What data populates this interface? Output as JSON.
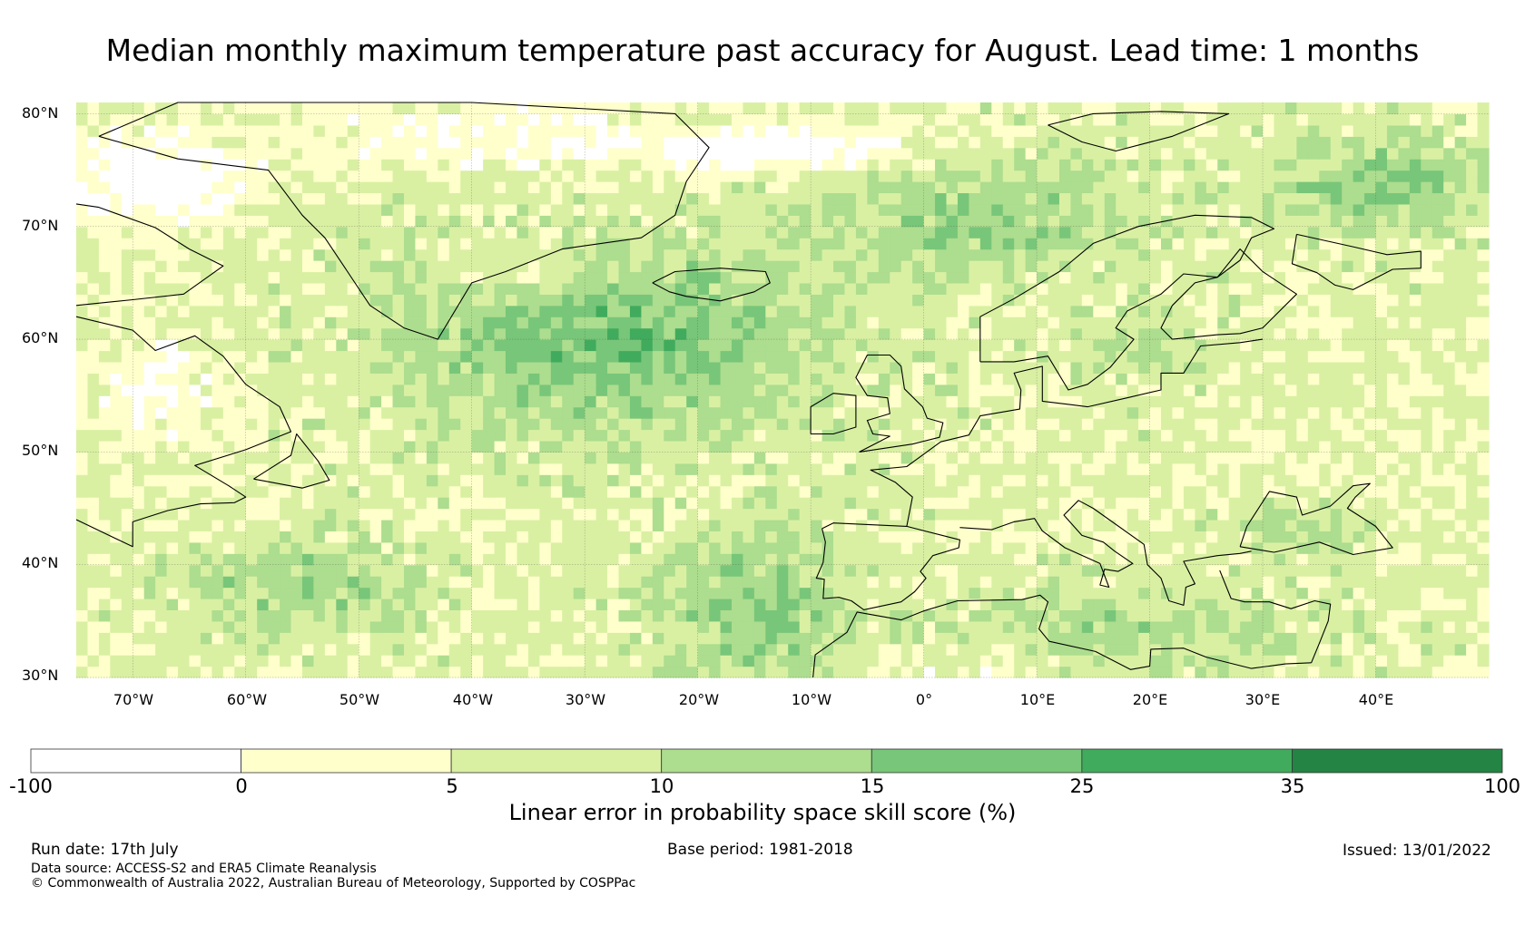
{
  "title": "Median monthly maximum temperature past accuracy for August. Lead time: 1 months",
  "map": {
    "lat_labels": [
      "80°N",
      "70°N",
      "60°N",
      "50°N",
      "40°N",
      "30°N"
    ],
    "lon_labels": [
      "70°W",
      "60°W",
      "50°W",
      "40°W",
      "30°W",
      "20°W",
      "10°W",
      "0°",
      "10°E",
      "20°E",
      "30°E",
      "40°E"
    ],
    "lat_range": [
      30,
      81
    ],
    "lon_range": [
      -75,
      50
    ]
  },
  "colorbar": {
    "title": "Linear error in probability space skill score (%)",
    "ticks": [
      "-100",
      "0",
      "5",
      "10",
      "15",
      "25",
      "35",
      "100"
    ],
    "colors": [
      "#ffffff",
      "#ffffcc",
      "#d9f0a3",
      "#addd8e",
      "#78c679",
      "#41ab5d",
      "#238443"
    ]
  },
  "footer": {
    "run_date": "Run date: 17th July",
    "base_period": "Base period: 1981-2018",
    "issued": "Issued: 13/01/2022",
    "data_source": "Data source: ACCESS-S2 and ERA5 Climate Reanalysis",
    "copyright": "© Commonwealth of Australia 2022, Australian Bureau of Meteorology, Supported by COSPPac"
  }
}
